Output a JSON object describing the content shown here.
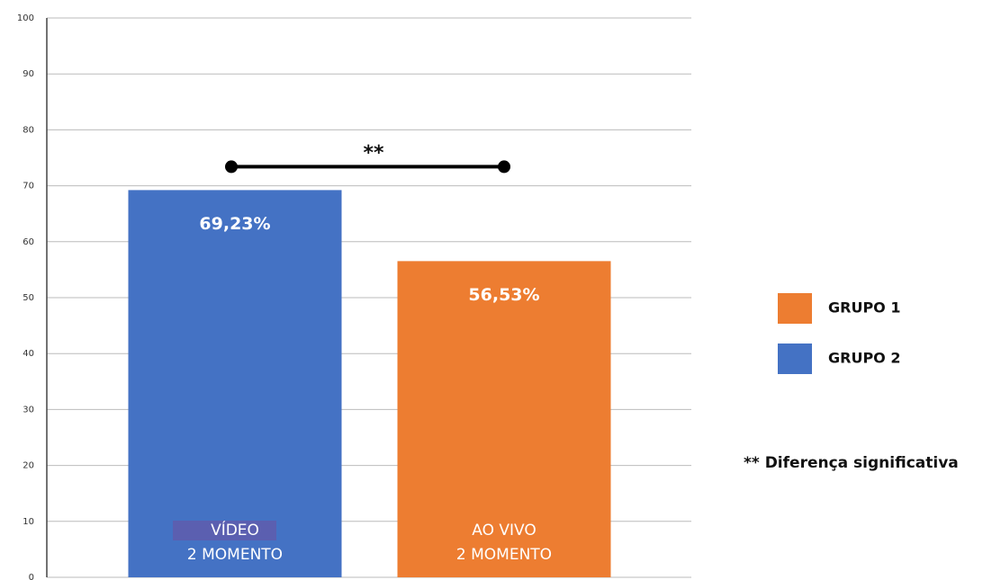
{
  "chart_data": {
    "type": "bar",
    "categories": [
      [
        "VÍDEO",
        "2 MOMENTO"
      ],
      [
        "AO VIVO",
        "2 MOMENTO"
      ]
    ],
    "series": [
      {
        "name": "GRUPO 1",
        "color": "#ed7d31",
        "values": [
          null,
          56.53
        ],
        "value_labels": [
          null,
          "56,53%"
        ]
      },
      {
        "name": "GRUPO 2",
        "color": "#4472c4",
        "values": [
          69.23,
          null
        ],
        "value_labels": [
          "69,23%",
          null
        ]
      }
    ],
    "ylim": [
      0,
      100
    ],
    "yticks": [
      0,
      10,
      20,
      30,
      40,
      50,
      60,
      70,
      80,
      90,
      100
    ],
    "grid": true,
    "annotation": "**",
    "note": "** Diferença significativa"
  }
}
